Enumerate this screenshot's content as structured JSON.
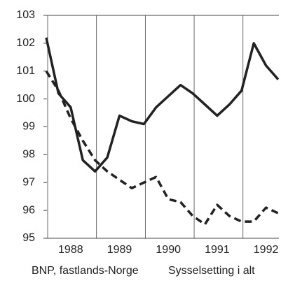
{
  "chart_data": {
    "type": "line",
    "categories": [
      null,
      null,
      "1988",
      null,
      null,
      null,
      "1989",
      null,
      null,
      null,
      "1990",
      null,
      null,
      null,
      "1991",
      null,
      null,
      null,
      "1992",
      null
    ],
    "series": [
      {
        "name": "BNP, fastlands-Norge",
        "color": "#222222",
        "dash": false,
        "values": [
          102.2,
          100.2,
          99.7,
          97.8,
          97.4,
          97.9,
          99.4,
          99.2,
          99.1,
          99.7,
          100.1,
          100.5,
          100.2,
          99.8,
          99.4,
          99.8,
          100.3,
          102.0,
          101.2,
          100.7
        ]
      },
      {
        "name": "Sysselsetting i alt",
        "color": "#222222",
        "dash": true,
        "values": [
          101.0,
          100.3,
          99.3,
          98.5,
          97.8,
          97.4,
          97.1,
          96.8,
          97.0,
          97.2,
          96.4,
          96.3,
          95.8,
          95.5,
          96.2,
          95.8,
          95.6,
          95.6,
          96.1,
          95.9
        ]
      }
    ],
    "ylim": [
      95,
      103
    ],
    "yticks": [
      95,
      96,
      97,
      98,
      99,
      100,
      101,
      102,
      103
    ]
  }
}
